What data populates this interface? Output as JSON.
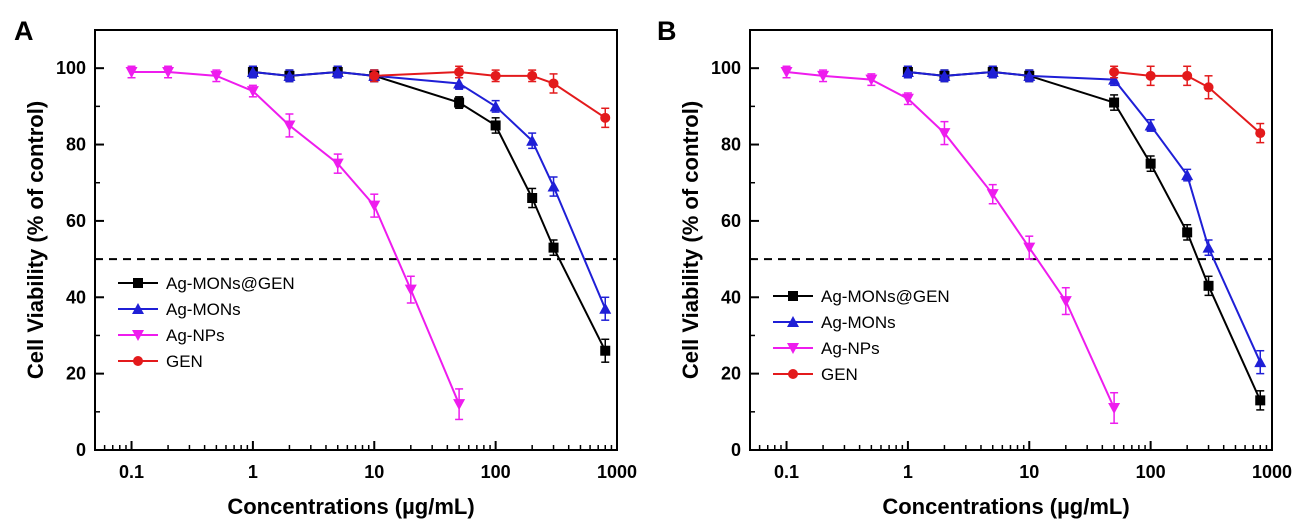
{
  "panel_labels": [
    "A",
    "B"
  ],
  "colors": {
    "Ag-MONs@GEN": "#000000",
    "Ag-MONs": "#1f1fd6",
    "Ag-NPs": "#ee1cee",
    "GEN": "#e31a1c",
    "reference": "#000000"
  },
  "chart_data": [
    {
      "type": "line",
      "panel": "A",
      "xlabel": "Concentrations (µg/mL)",
      "ylabel": "Cell Viability (% of control)",
      "xscale": "log",
      "xlim": [
        0.05,
        1000
      ],
      "ylim": [
        0,
        110
      ],
      "xticks": [
        0.1,
        1,
        10,
        100,
        1000
      ],
      "xtick_labels": [
        "0.1",
        "1",
        "10",
        "100",
        "1000"
      ],
      "yticks": [
        0,
        20,
        40,
        60,
        80,
        100
      ],
      "ytick_labels": [
        "0",
        "20",
        "40",
        "60",
        "80",
        "100"
      ],
      "grid": false,
      "legend_position": "lower-left",
      "reference_line": 50,
      "series": [
        {
          "name": "Ag-MONs@GEN",
          "marker": "square",
          "x": [
            1,
            2,
            5,
            10,
            50,
            100,
            200,
            300,
            800
          ],
          "y": [
            99,
            98,
            99,
            98,
            91,
            85,
            66,
            53,
            26
          ],
          "err": [
            1.5,
            1.5,
            1.5,
            1.5,
            1.5,
            2,
            2.5,
            2,
            3
          ]
        },
        {
          "name": "Ag-MONs",
          "marker": "triangle-up",
          "x": [
            1,
            2,
            5,
            10,
            50,
            100,
            200,
            300,
            800
          ],
          "y": [
            99,
            98,
            99,
            98,
            96,
            90,
            81,
            69,
            37
          ],
          "err": [
            1.5,
            1.5,
            1.5,
            1.5,
            1.5,
            1.5,
            2,
            2.5,
            3
          ]
        },
        {
          "name": "Ag-NPs",
          "marker": "triangle-down",
          "x": [
            0.1,
            0.2,
            0.5,
            1,
            2,
            5,
            10,
            20,
            50
          ],
          "y": [
            99,
            99,
            98,
            94,
            85,
            75,
            64,
            42,
            12
          ],
          "err": [
            1.5,
            1.5,
            1.5,
            1.5,
            3,
            2.5,
            3,
            3.5,
            4
          ]
        },
        {
          "name": "GEN",
          "marker": "circle",
          "x": [
            10,
            50,
            100,
            200,
            300,
            800
          ],
          "y": [
            98,
            99,
            98,
            98,
            96,
            87
          ],
          "err": [
            1.5,
            1.5,
            1.5,
            1.5,
            2.5,
            2.5
          ]
        }
      ]
    },
    {
      "type": "line",
      "panel": "B",
      "xlabel": "Concentrations (µg/mL)",
      "ylabel": "Cell Viability (% of control)",
      "xscale": "log",
      "xlim": [
        0.05,
        1000
      ],
      "ylim": [
        0,
        110
      ],
      "xticks": [
        0.1,
        1,
        10,
        100,
        1000
      ],
      "xtick_labels": [
        "0.1",
        "1",
        "10",
        "100",
        "1000"
      ],
      "yticks": [
        0,
        20,
        40,
        60,
        80,
        100
      ],
      "ytick_labels": [
        "0",
        "20",
        "40",
        "60",
        "80",
        "100"
      ],
      "grid": false,
      "legend_position": "lower-left",
      "reference_line": 50,
      "series": [
        {
          "name": "Ag-MONs@GEN",
          "marker": "square",
          "x": [
            1,
            2,
            5,
            10,
            50,
            100,
            200,
            300,
            800
          ],
          "y": [
            99,
            98,
            99,
            98,
            91,
            75,
            57,
            43,
            13
          ],
          "err": [
            1.5,
            1.5,
            1.5,
            1.5,
            2,
            2,
            2,
            2.5,
            2.5
          ]
        },
        {
          "name": "Ag-MONs",
          "marker": "triangle-up",
          "x": [
            1,
            2,
            5,
            10,
            50,
            100,
            200,
            300,
            800
          ],
          "y": [
            99,
            98,
            99,
            98,
            97,
            85,
            72,
            53,
            23
          ],
          "err": [
            1.5,
            1.5,
            1.5,
            1.5,
            1.5,
            1.5,
            1.5,
            2,
            3
          ]
        },
        {
          "name": "Ag-NPs",
          "marker": "triangle-down",
          "x": [
            0.1,
            0.2,
            0.5,
            1,
            2,
            5,
            10,
            20,
            50
          ],
          "y": [
            99,
            98,
            97,
            92,
            83,
            67,
            53,
            39,
            11
          ],
          "err": [
            1.5,
            1.5,
            1.5,
            1.5,
            3,
            2.5,
            3,
            3.5,
            4
          ]
        },
        {
          "name": "GEN",
          "marker": "circle",
          "x": [
            50,
            100,
            200,
            300,
            800
          ],
          "y": [
            99,
            98,
            98,
            95,
            83
          ],
          "err": [
            1.5,
            2.5,
            2.5,
            3,
            2.5
          ]
        }
      ]
    }
  ]
}
